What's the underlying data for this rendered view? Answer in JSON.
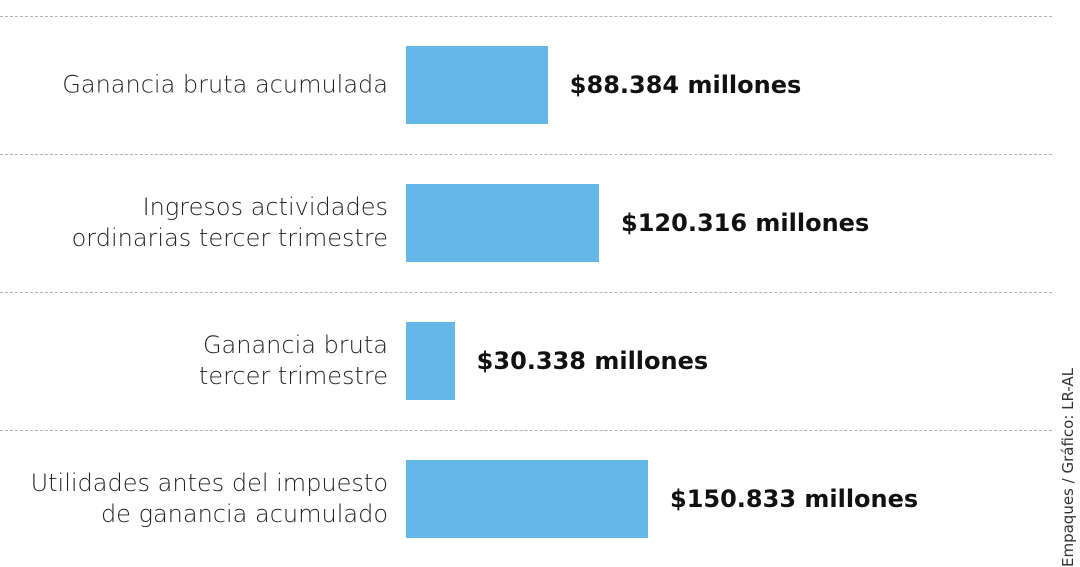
{
  "chart_data": {
    "type": "bar",
    "orientation": "horizontal",
    "categories": [
      "Ganancia bruta acumulada",
      "Ingresos actividades\nordinarias tercer trimestre",
      "Ganancia bruta\ntercer trimestre",
      "Utilidades antes del impuesto\nde ganancia acumulado"
    ],
    "values": [
      88384,
      120316,
      30338,
      150833
    ],
    "value_labels": [
      "$88.384 millones",
      "$120.316 millones",
      "$30.338 millones",
      "$150.833 millones"
    ],
    "color": "#63b8e8",
    "source": "Empaques / Gráfico: LR-AL"
  }
}
